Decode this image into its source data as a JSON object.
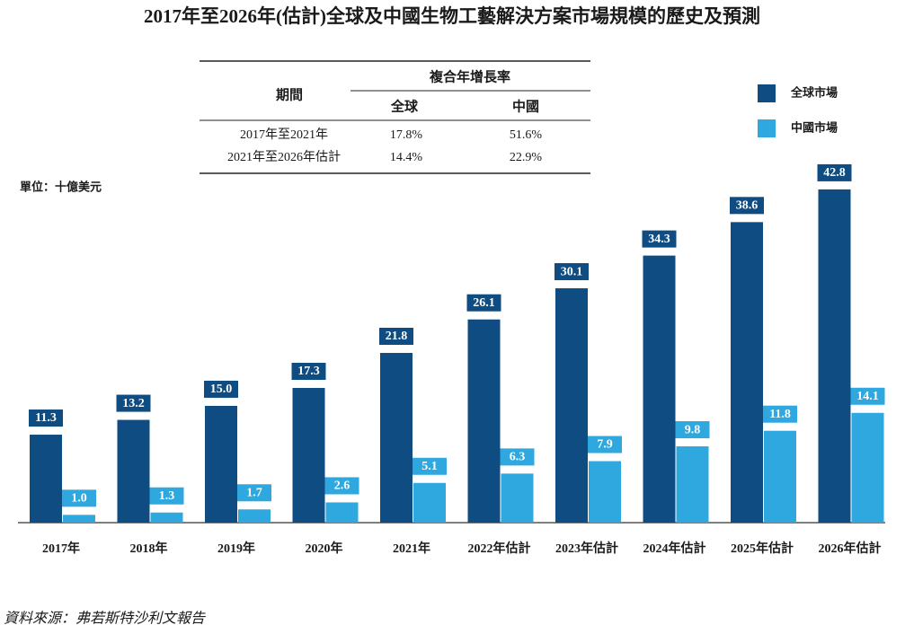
{
  "chart_data": {
    "type": "bar",
    "title": "2017年至2026年(估計)全球及中國生物工藝解決方案市場規模的歷史及預測",
    "unit": "單位：十億美元",
    "categories": [
      "2017年",
      "2018年",
      "2019年",
      "2020年",
      "2021年",
      "2022年估計",
      "2023年估計",
      "2024年估計",
      "2025年估計",
      "2026年估計"
    ],
    "series": [
      {
        "name": "全球市場",
        "color": "#0f4c81",
        "values": [
          11.3,
          13.2,
          15.0,
          17.3,
          21.8,
          26.1,
          30.1,
          34.3,
          38.6,
          42.8
        ],
        "value_labels": [
          "11.3",
          "13.2",
          "15.0",
          "17.3",
          "21.8",
          "26.1",
          "30.1",
          "34.3",
          "38.6",
          "42.8"
        ]
      },
      {
        "name": "中國市場",
        "color": "#2fa8e0",
        "values": [
          1.0,
          1.3,
          1.7,
          2.6,
          5.1,
          6.3,
          7.9,
          9.8,
          11.8,
          14.1
        ],
        "value_labels": [
          "1.0",
          "1.3",
          "1.7",
          "2.6",
          "5.1",
          "6.3",
          "7.9",
          "9.8",
          "11.8",
          "14.1"
        ]
      }
    ],
    "source": "資料來源：弗若斯特沙利文報告"
  },
  "table": {
    "header": [
      "期間",
      "複合年增長率"
    ],
    "subheader": [
      "全球",
      "中國"
    ],
    "rows": [
      [
        "2017年至2021年",
        "17.8%",
        "51.6%"
      ],
      [
        "2021年至2026年估計",
        "14.4%",
        "22.9%"
      ]
    ]
  }
}
